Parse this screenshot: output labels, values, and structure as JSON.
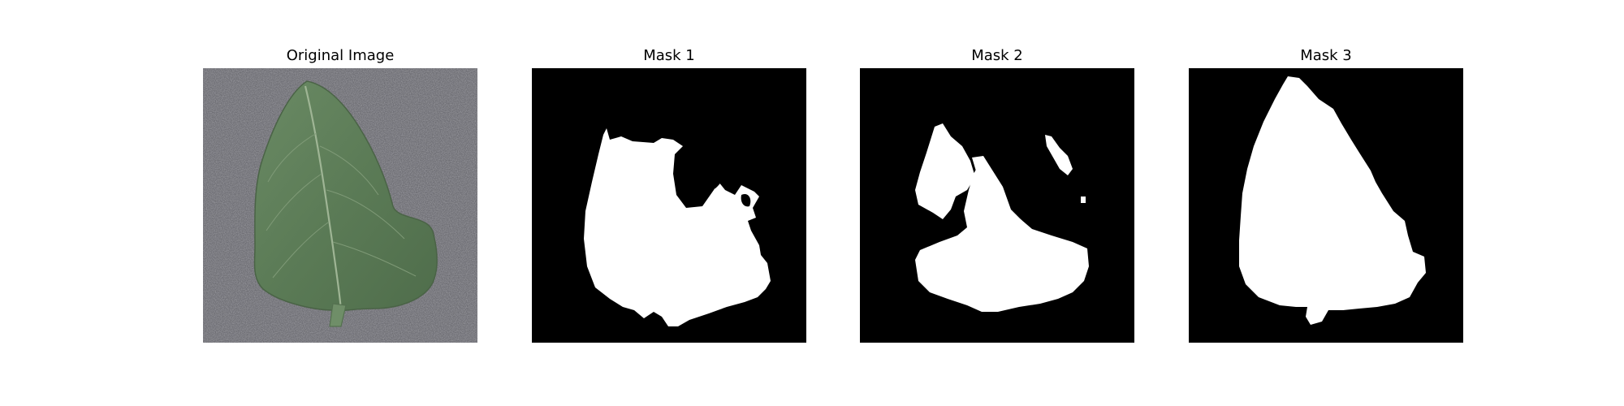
{
  "panels": [
    {
      "title": "Original Image"
    },
    {
      "title": "Mask 1"
    },
    {
      "title": "Mask 2"
    },
    {
      "title": "Mask 3"
    }
  ],
  "colors": {
    "background": "#ffffff",
    "mask_background": "#000000",
    "mask_foreground": "#ffffff",
    "leaf_green": "#5d7d58",
    "surface_gray": "#6e6e74"
  }
}
